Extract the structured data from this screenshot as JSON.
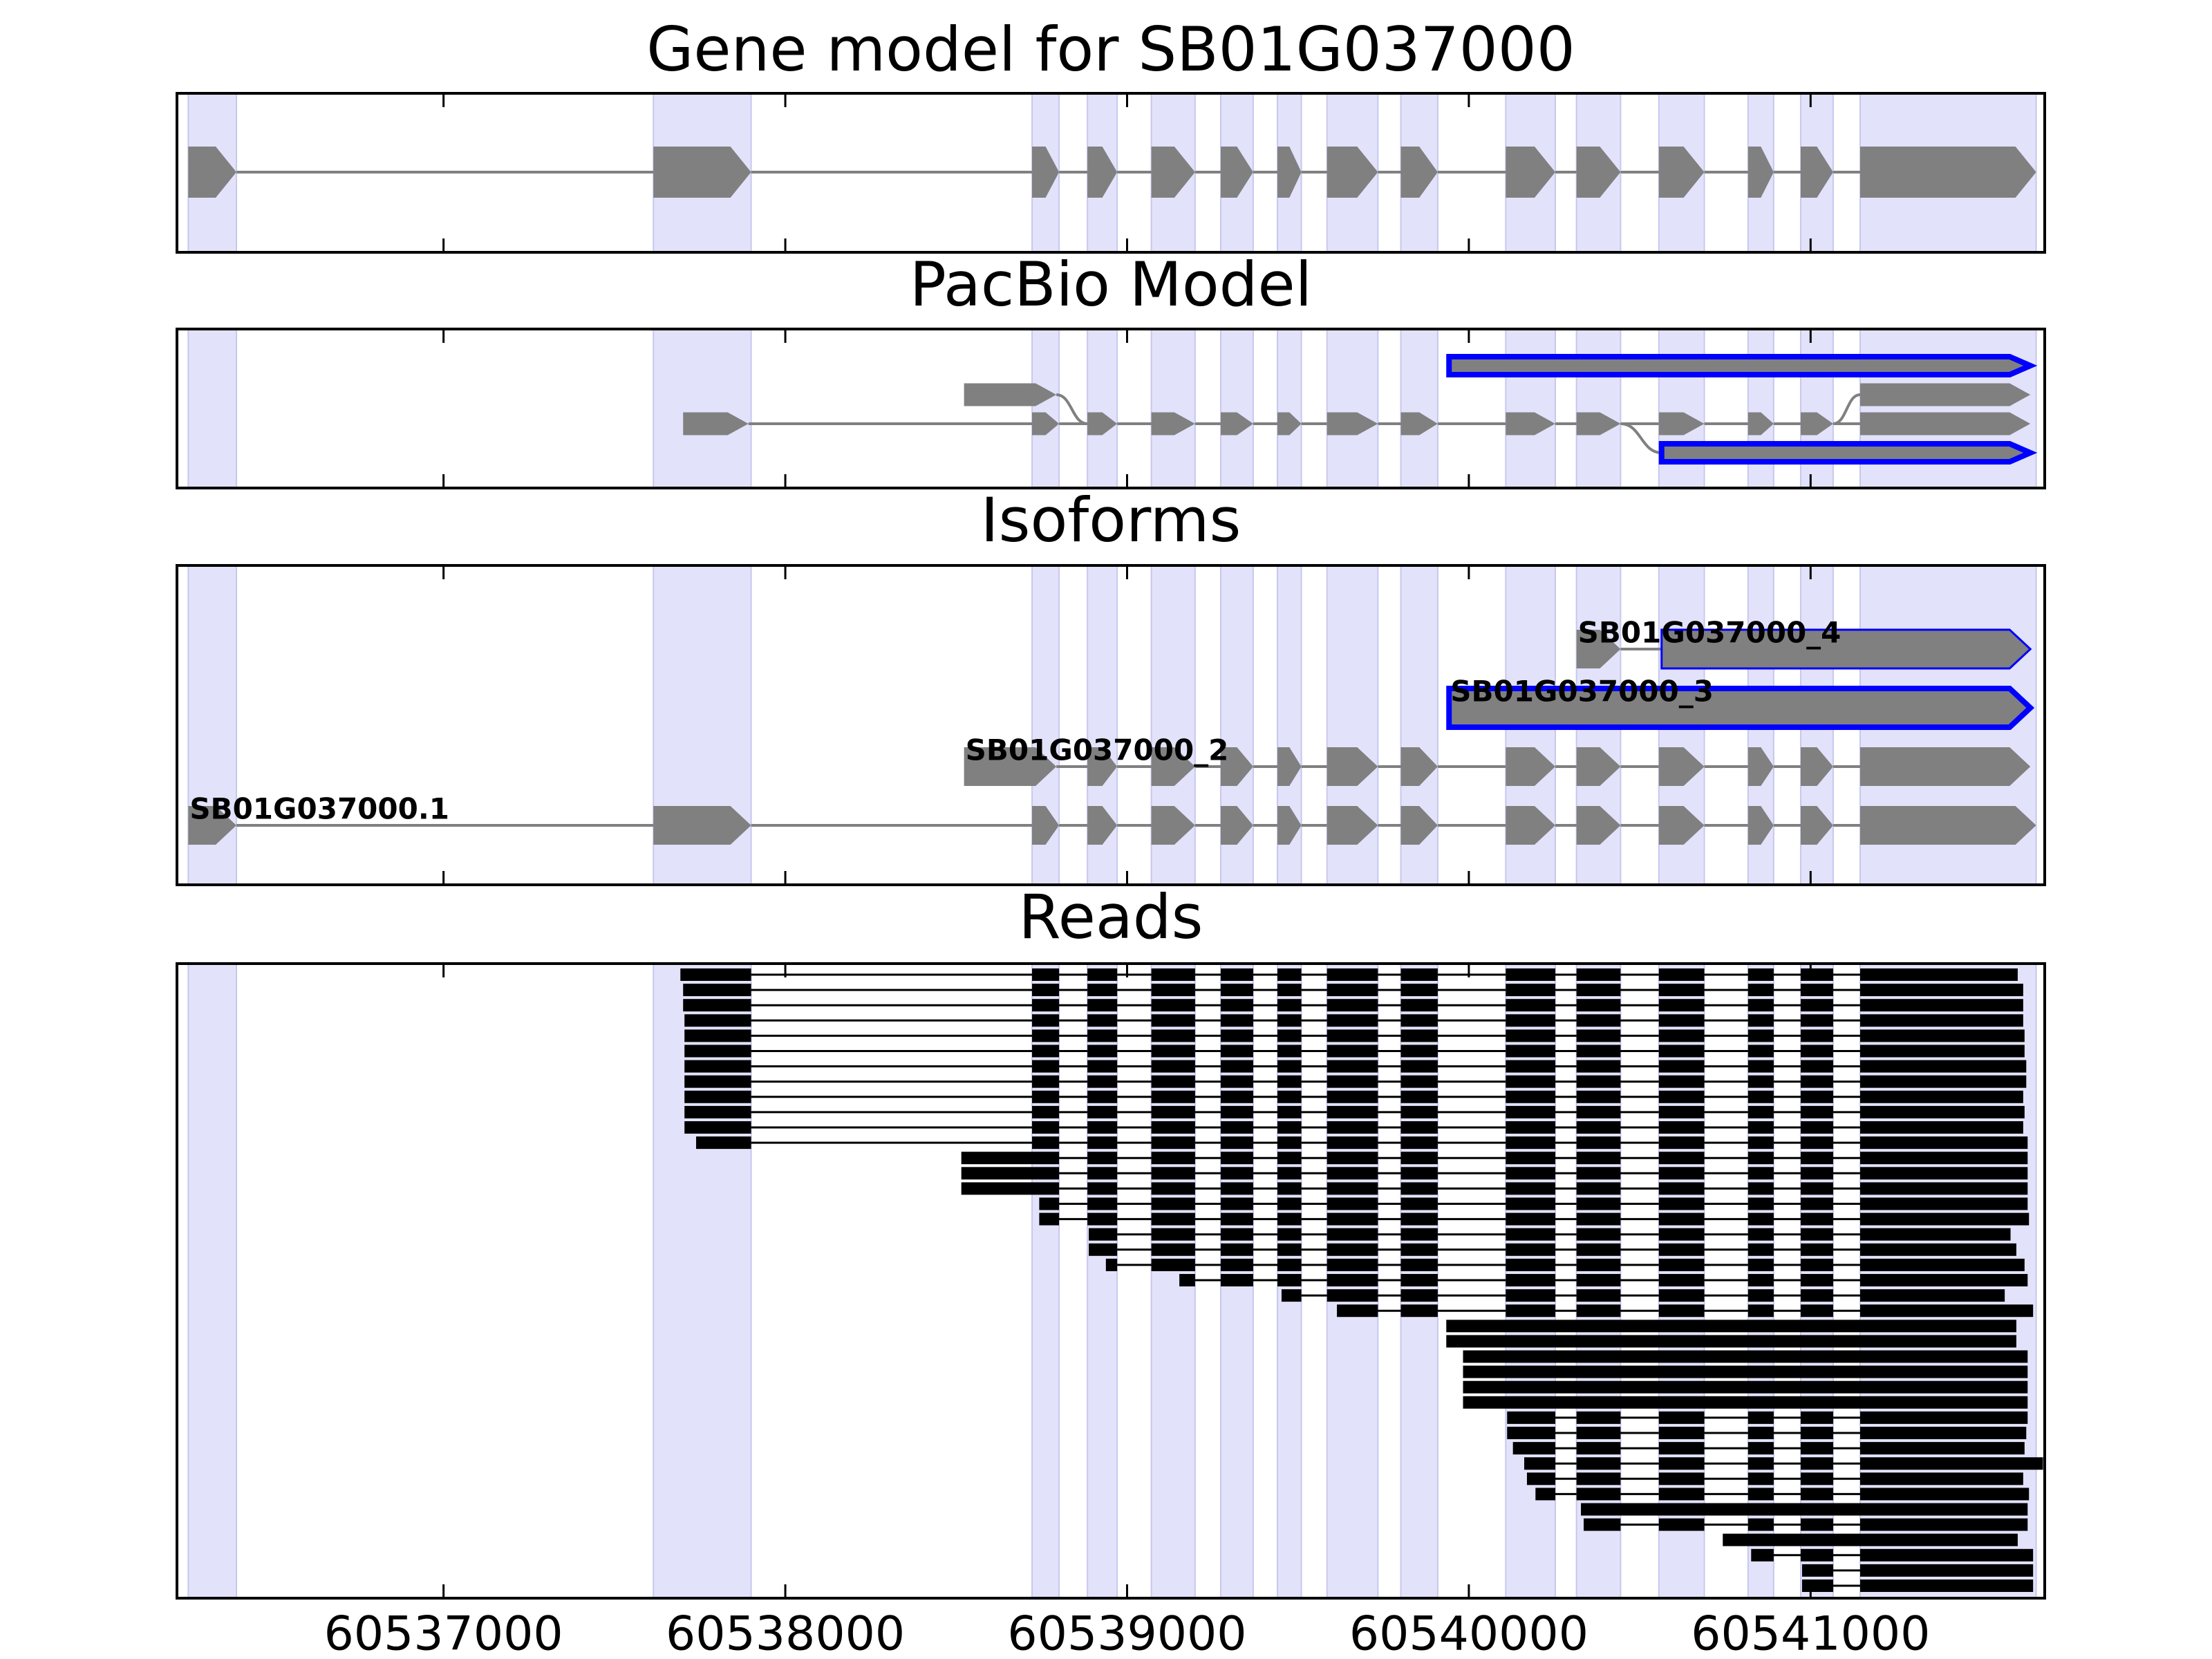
{
  "chart_data": [
    {
      "type": "gene-model",
      "title": "Gene model for SB01G037000",
      "color": "#808080",
      "shade": "#e2e2fb",
      "xlim": [
        60536220,
        60541685
      ],
      "xticks": [
        60537000,
        60538000,
        60539000,
        60540000,
        60541000
      ],
      "exons": [
        [
          60536253,
          60536394
        ],
        [
          60537614,
          60537900
        ],
        [
          60538722,
          60538801
        ],
        [
          60538884,
          60538971
        ],
        [
          60539071,
          60539199
        ],
        [
          60539274,
          60539369
        ],
        [
          60539440,
          60539510
        ],
        [
          60539585,
          60539734
        ],
        [
          60539801,
          60539909
        ],
        [
          60540108,
          60540253
        ],
        [
          60540315,
          60540444
        ],
        [
          60540556,
          60540689
        ],
        [
          60540817,
          60540892
        ],
        [
          60540971,
          60541066
        ],
        [
          60541145,
          60541660
        ]
      ]
    },
    {
      "type": "splice-graph",
      "title": "PacBio Model",
      "color": "#808080",
      "edge": "#0000ff",
      "xlim": [
        60536220,
        60541685
      ],
      "xticks": [
        60537000,
        60538000,
        60539000,
        60540000,
        60541000
      ],
      "levels": [
        [
          {
            "start": 60539942,
            "end": 60541643,
            "edge": true
          }
        ],
        [
          {
            "start": 60538523,
            "end": 60538793
          },
          {
            "start": 60541145,
            "end": 60541643
          }
        ],
        [
          {
            "start": 60537701,
            "end": 60537892
          },
          {
            "start": 60538722,
            "end": 60538801
          },
          {
            "start": 60538884,
            "end": 60538971
          },
          {
            "start": 60539071,
            "end": 60539199
          },
          {
            "start": 60539274,
            "end": 60539369
          },
          {
            "start": 60539440,
            "end": 60539510
          },
          {
            "start": 60539585,
            "end": 60539734
          },
          {
            "start": 60539801,
            "end": 60539909
          },
          {
            "start": 60540108,
            "end": 60540253
          },
          {
            "start": 60540315,
            "end": 60540444
          },
          {
            "start": 60540556,
            "end": 60540689
          },
          {
            "start": 60540817,
            "end": 60540892
          },
          {
            "start": 60540971,
            "end": 60541066
          },
          {
            "start": 60541145,
            "end": 60541643
          }
        ],
        [
          {
            "start": 60540564,
            "end": 60541643,
            "edge": true
          }
        ]
      ],
      "links": [
        [
          [
            2,
            0
          ],
          [
            2,
            1
          ]
        ],
        [
          [
            2,
            1
          ],
          [
            2,
            2
          ]
        ],
        [
          [
            2,
            2
          ],
          [
            2,
            3
          ]
        ],
        [
          [
            2,
            3
          ],
          [
            2,
            4
          ]
        ],
        [
          [
            2,
            4
          ],
          [
            2,
            5
          ]
        ],
        [
          [
            2,
            5
          ],
          [
            2,
            6
          ]
        ],
        [
          [
            2,
            6
          ],
          [
            2,
            7
          ]
        ],
        [
          [
            2,
            7
          ],
          [
            2,
            8
          ]
        ],
        [
          [
            2,
            8
          ],
          [
            2,
            9
          ]
        ],
        [
          [
            2,
            9
          ],
          [
            2,
            10
          ]
        ],
        [
          [
            2,
            10
          ],
          [
            2,
            11
          ]
        ],
        [
          [
            2,
            11
          ],
          [
            2,
            12
          ]
        ],
        [
          [
            2,
            12
          ],
          [
            2,
            13
          ]
        ],
        [
          [
            1,
            0
          ],
          [
            2,
            2
          ]
        ],
        [
          [
            2,
            12
          ],
          [
            1,
            1
          ]
        ],
        [
          [
            2,
            9
          ],
          [
            3,
            0
          ]
        ]
      ]
    },
    {
      "type": "isoforms",
      "title": "Isoforms",
      "color": "#808080",
      "edge": "#0000ff",
      "xlim": [
        60536220,
        60541685
      ],
      "xticks": [
        60537000,
        60538000,
        60539000,
        60540000,
        60541000
      ],
      "isoforms": [
        {
          "name": "SB01G037000.1",
          "blocks": [
            {
              "start": 60536253,
              "end": 60536394
            },
            {
              "start": 60537614,
              "end": 60537900
            },
            {
              "start": 60538722,
              "end": 60538801
            },
            {
              "start": 60538884,
              "end": 60538971
            },
            {
              "start": 60539071,
              "end": 60539199
            },
            {
              "start": 60539274,
              "end": 60539369
            },
            {
              "start": 60539440,
              "end": 60539510
            },
            {
              "start": 60539585,
              "end": 60539734
            },
            {
              "start": 60539801,
              "end": 60539909
            },
            {
              "start": 60540108,
              "end": 60540253
            },
            {
              "start": 60540315,
              "end": 60540444
            },
            {
              "start": 60540556,
              "end": 60540689
            },
            {
              "start": 60540817,
              "end": 60540892
            },
            {
              "start": 60540971,
              "end": 60541066
            },
            {
              "start": 60541145,
              "end": 60541660
            }
          ]
        },
        {
          "name": "SB01G037000_2",
          "blocks": [
            {
              "start": 60538523,
              "end": 60538793
            },
            {
              "start": 60538884,
              "end": 60538971
            },
            {
              "start": 60539071,
              "end": 60539199
            },
            {
              "start": 60539274,
              "end": 60539369
            },
            {
              "start": 60539440,
              "end": 60539510
            },
            {
              "start": 60539585,
              "end": 60539734
            },
            {
              "start": 60539801,
              "end": 60539909
            },
            {
              "start": 60540108,
              "end": 60540253
            },
            {
              "start": 60540315,
              "end": 60540444
            },
            {
              "start": 60540556,
              "end": 60540689
            },
            {
              "start": 60540817,
              "end": 60540892
            },
            {
              "start": 60540971,
              "end": 60541066
            },
            {
              "start": 60541145,
              "end": 60541643
            }
          ]
        },
        {
          "name": "SB01G037000_3",
          "edge_style": "bold",
          "blocks": [
            {
              "start": 60539942,
              "end": 60541643,
              "edge": true
            }
          ]
        },
        {
          "name": "SB01G037000_4",
          "edge_style": "thin",
          "blocks": [
            {
              "start": 60540315,
              "end": 60540444
            },
            {
              "start": 60540564,
              "end": 60541643,
              "edge": true
            }
          ]
        }
      ]
    },
    {
      "type": "reads",
      "title": "Reads",
      "color": "#000000",
      "xlim": [
        60536220,
        60541685
      ],
      "xticks": [
        60537000,
        60538000,
        60539000,
        60540000,
        60541000
      ],
      "reads": [
        {
          "start": 60537693,
          "end": 60541606,
          "spliced": true
        },
        {
          "start": 60537701,
          "end": 60541622,
          "spliced": true
        },
        {
          "start": 60537701,
          "end": 60541622,
          "spliced": true
        },
        {
          "start": 60537705,
          "end": 60541622,
          "spliced": true
        },
        {
          "start": 60537705,
          "end": 60541626,
          "spliced": true
        },
        {
          "start": 60537705,
          "end": 60541626,
          "spliced": true
        },
        {
          "start": 60537705,
          "end": 60541631,
          "spliced": true
        },
        {
          "start": 60537705,
          "end": 60541631,
          "spliced": true
        },
        {
          "start": 60537705,
          "end": 60541622,
          "spliced": true
        },
        {
          "start": 60537705,
          "end": 60541626,
          "spliced": true
        },
        {
          "start": 60537705,
          "end": 60541622,
          "spliced": true
        },
        {
          "start": 60537739,
          "end": 60541635,
          "spliced": true
        },
        {
          "start": 60538515,
          "end": 60541635,
          "spliced": true
        },
        {
          "start": 60538515,
          "end": 60541635,
          "spliced": true
        },
        {
          "start": 60538515,
          "end": 60541635,
          "spliced": true
        },
        {
          "start": 60538743,
          "end": 60541635,
          "spliced": true
        },
        {
          "start": 60538743,
          "end": 60541639,
          "spliced": true
        },
        {
          "start": 60538888,
          "end": 60541585,
          "spliced": true
        },
        {
          "start": 60538888,
          "end": 60541602,
          "spliced": true
        },
        {
          "start": 60538938,
          "end": 60541626,
          "spliced": true
        },
        {
          "start": 60539153,
          "end": 60541635,
          "spliced": true
        },
        {
          "start": 60539452,
          "end": 60541568,
          "spliced": true
        },
        {
          "start": 60539614,
          "end": 60541651,
          "spliced": true
        },
        {
          "start": 60539934,
          "end": 60541602,
          "spliced": false
        },
        {
          "start": 60539934,
          "end": 60541602,
          "spliced": false
        },
        {
          "start": 60539983,
          "end": 60541635,
          "spliced": false
        },
        {
          "start": 60539983,
          "end": 60541635,
          "spliced": false
        },
        {
          "start": 60539983,
          "end": 60541635,
          "spliced": false
        },
        {
          "start": 60539983,
          "end": 60541635,
          "spliced": false
        },
        {
          "start": 60540112,
          "end": 60541635,
          "spliced": true
        },
        {
          "start": 60540112,
          "end": 60541631,
          "spliced": true
        },
        {
          "start": 60540129,
          "end": 60541626,
          "spliced": true
        },
        {
          "start": 60540162,
          "end": 60541680,
          "spliced": true
        },
        {
          "start": 60540170,
          "end": 60541622,
          "spliced": true
        },
        {
          "start": 60540195,
          "end": 60541639,
          "spliced": true
        },
        {
          "start": 60540328,
          "end": 60541635,
          "spliced": false
        },
        {
          "start": 60540336,
          "end": 60541635,
          "spliced": true
        },
        {
          "start": 60540743,
          "end": 60541606,
          "spliced": false
        },
        {
          "start": 60540826,
          "end": 60541651,
          "spliced": true
        },
        {
          "start": 60540975,
          "end": 60541651,
          "spliced": true
        },
        {
          "start": 60540975,
          "end": 60541651,
          "spliced": true
        }
      ]
    }
  ]
}
